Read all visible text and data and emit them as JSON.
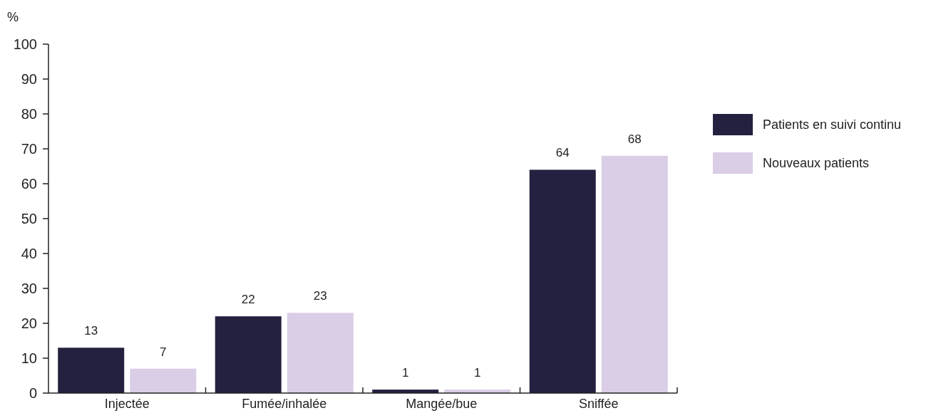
{
  "chart_data": {
    "type": "bar",
    "ylabel": "%",
    "categories": [
      "Injectée",
      "Fumée/inhalée",
      "Mangée/bue",
      "Sniffée"
    ],
    "series": [
      {
        "name": "Patients en suivi continu",
        "color": "#23213f",
        "values": [
          13,
          22,
          1,
          64
        ]
      },
      {
        "name": "Nouveaux patients",
        "color": "#dacde6",
        "values": [
          7,
          23,
          1,
          68
        ]
      }
    ],
    "ylim": [
      0,
      100
    ],
    "yticks": [
      0,
      10,
      20,
      30,
      40,
      50,
      60,
      70,
      80,
      90,
      100
    ],
    "data_labels": true,
    "grid": false,
    "legend": "right"
  }
}
